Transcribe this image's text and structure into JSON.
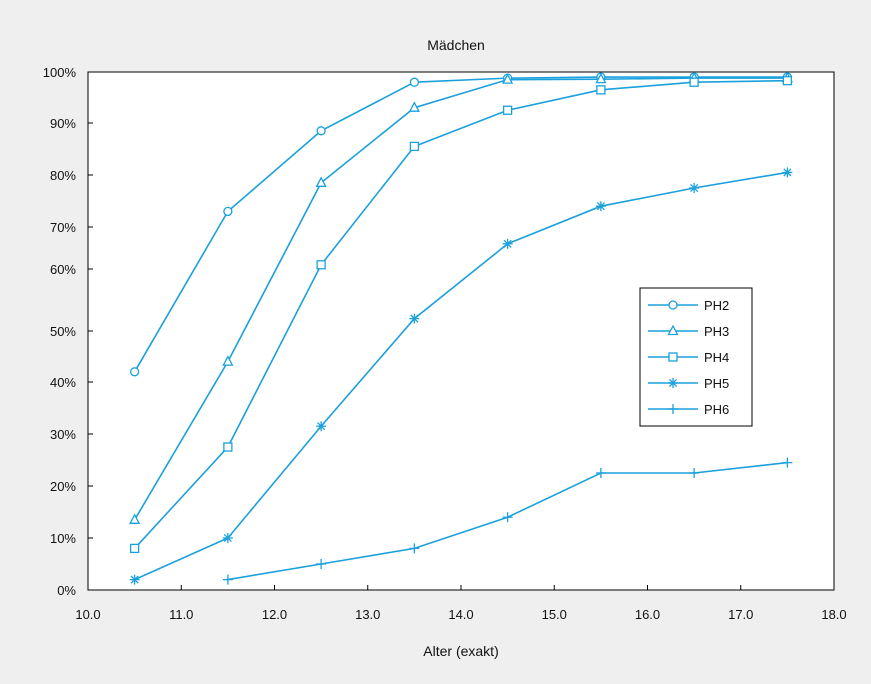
{
  "chart_data": {
    "type": "line",
    "title": "Mädchen",
    "xlabel": "Alter (exakt)",
    "ylabel": "",
    "xlim": [
      10.0,
      18.0
    ],
    "ylim": [
      0,
      100
    ],
    "xticks": [
      "10.0",
      "11.0",
      "12.0",
      "13.0",
      "14.0",
      "15.0",
      "16.0",
      "17.0",
      "18.0"
    ],
    "yticks": [
      {
        "value": 0,
        "label": "0%"
      },
      {
        "value": 10,
        "label": "10%"
      },
      {
        "value": 20,
        "label": "20%"
      },
      {
        "value": 30,
        "label": "30%"
      },
      {
        "value": 40,
        "label": "40%"
      },
      {
        "value": 50,
        "label": "50%"
      },
      {
        "value": 60,
        "label": "60%"
      },
      {
        "value": 70,
        "label": "70%"
      },
      {
        "value": 80,
        "label": "80%"
      },
      {
        "value": 90,
        "label": "90%"
      },
      {
        "value": 100,
        "label": "100%"
      }
    ],
    "y_scale": "probit",
    "grid": true,
    "grid_style": "dotted",
    "legend_position": "right",
    "line_color": "#1aa0dc",
    "series": [
      {
        "name": "PH2",
        "marker": "circle",
        "x": [
          10.5,
          11.5,
          12.5,
          13.5,
          14.5,
          15.5,
          16.5,
          17.5
        ],
        "values": [
          42.0,
          73.0,
          88.5,
          98.0,
          98.8,
          99.0,
          99.0,
          99.0
        ]
      },
      {
        "name": "PH3",
        "marker": "triangle",
        "x": [
          10.5,
          11.5,
          12.5,
          13.5,
          14.5,
          15.5,
          16.5,
          17.5
        ],
        "values": [
          13.5,
          44.0,
          78.5,
          93.0,
          98.5,
          98.6,
          98.8,
          98.8
        ]
      },
      {
        "name": "PH4",
        "marker": "square",
        "x": [
          10.5,
          11.5,
          12.5,
          13.5,
          14.5,
          15.5,
          16.5,
          17.5
        ],
        "values": [
          8.0,
          27.5,
          61.0,
          85.5,
          92.5,
          96.5,
          98.0,
          98.3
        ]
      },
      {
        "name": "PH5",
        "marker": "star",
        "x": [
          10.5,
          11.5,
          12.5,
          13.5,
          14.5,
          15.5,
          16.5,
          17.5
        ],
        "values": [
          2.0,
          10.0,
          31.5,
          52.0,
          66.0,
          74.0,
          77.5,
          80.5
        ]
      },
      {
        "name": "PH6",
        "marker": "plus",
        "x": [
          11.5,
          12.5,
          13.5,
          14.5,
          15.5,
          16.5,
          17.5
        ],
        "values": [
          2.0,
          5.0,
          8.0,
          14.0,
          22.5,
          22.5,
          24.5
        ]
      }
    ]
  }
}
